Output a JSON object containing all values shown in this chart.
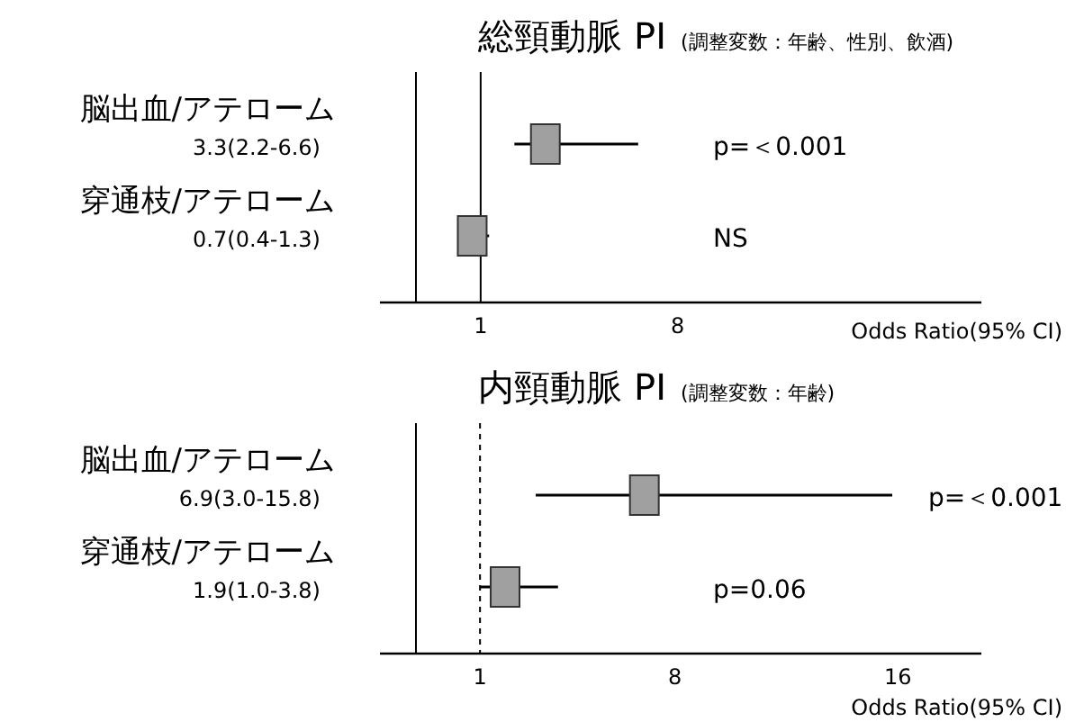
{
  "chart_data": [
    {
      "type": "scatter",
      "orientation": "horizontal",
      "title": "総頸動脈 PI",
      "subtitle": "(調整変数：年齢、性別、飲酒)",
      "xlabel": "Odds Ratio(95% CI)",
      "categories": [
        "脳出血/アテローム",
        "穿通枝/アテローム"
      ],
      "values": [
        3.3,
        0.7
      ],
      "errors": [
        [
          2.2,
          6.6
        ],
        [
          0.4,
          1.3
        ]
      ],
      "value_labels": [
        "3.3(2.2-6.6)",
        "0.7(0.4-1.3)"
      ],
      "color": "#a0a0a0",
      "marker": "square",
      "xlim": [
        -1.3,
        18.8
      ],
      "xticks": [
        1,
        8
      ],
      "ref_lines": [
        {
          "axis": "x",
          "value": 1,
          "line_style": "solid"
        }
      ],
      "annotations": [
        "p=＜0.001",
        "NS"
      ]
    },
    {
      "type": "scatter",
      "orientation": "horizontal",
      "title": "内頸動脈 PI",
      "subtitle": "(調整変数：年齢)",
      "xlabel": "Odds Ratio(95% CI)",
      "categories": [
        "脳出血/アテローム",
        "穿通枝/アテローム"
      ],
      "values": [
        6.9,
        1.9
      ],
      "errors": [
        [
          3.0,
          15.8
        ],
        [
          1.0,
          3.8
        ]
      ],
      "value_labels": [
        "6.9(3.0-15.8)",
        "1.9(1.0-3.8)"
      ],
      "color": "#a0a0a0",
      "marker": "square",
      "xlim": [
        -1.3,
        19
      ],
      "xticks": [
        1,
        8,
        16
      ],
      "ref_lines": [
        {
          "axis": "x",
          "value": 1,
          "line_style": "dashed"
        }
      ],
      "annotations": [
        "p=＜0.001",
        "p=0.06"
      ]
    }
  ]
}
